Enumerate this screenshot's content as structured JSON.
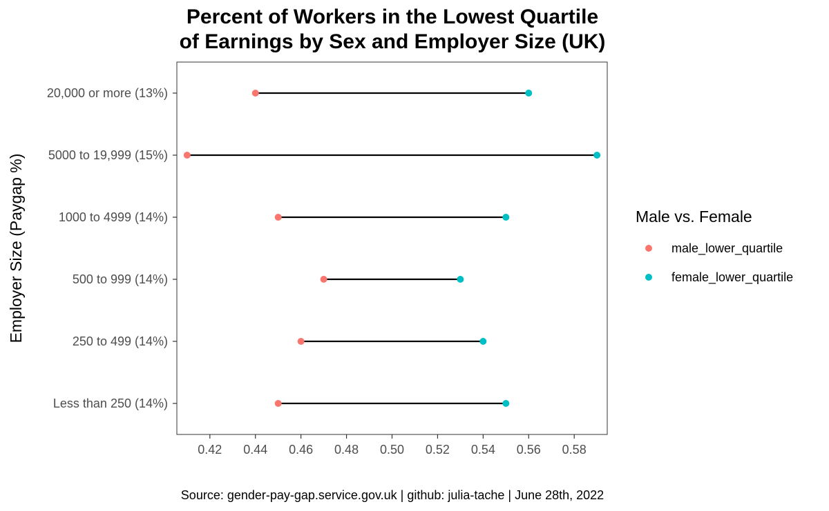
{
  "chart_data": {
    "type": "scatter",
    "subtype": "dumbbell",
    "title_lines": [
      "Percent of Workers in the Lowest Quartile",
      "of Earnings by Sex and Employer Size (UK)"
    ],
    "ylabel": "Employer Size (Paygap %)",
    "xlabel": "",
    "xlim": [
      0.4055,
      0.5945
    ],
    "x_ticks": [
      0.42,
      0.44,
      0.46,
      0.48,
      0.5,
      0.52,
      0.54,
      0.56,
      0.58
    ],
    "x_tick_labels": [
      "0.42",
      "0.44",
      "0.46",
      "0.48",
      "0.50",
      "0.52",
      "0.54",
      "0.56",
      "0.58"
    ],
    "categories": [
      "20,000 or more (13%)",
      "5000 to 19,999 (15%)",
      "1000 to 4999 (14%)",
      "500 to 999 (14%)",
      "250 to 499 (14%)",
      "Less than 250 (14%)"
    ],
    "series": [
      {
        "name": "male_lower_quartile",
        "color": "#F8766D",
        "values": [
          0.44,
          0.41,
          0.45,
          0.47,
          0.46,
          0.45
        ]
      },
      {
        "name": "female_lower_quartile",
        "color": "#00BFC4",
        "values": [
          0.56,
          0.59,
          0.55,
          0.53,
          0.54,
          0.55
        ]
      }
    ],
    "legend": {
      "title": "Male vs. Female",
      "position": "right"
    },
    "grid": false,
    "caption": "Source: gender-pay-gap.service.gov.uk | github: julia-tache | June 28th, 2022"
  }
}
